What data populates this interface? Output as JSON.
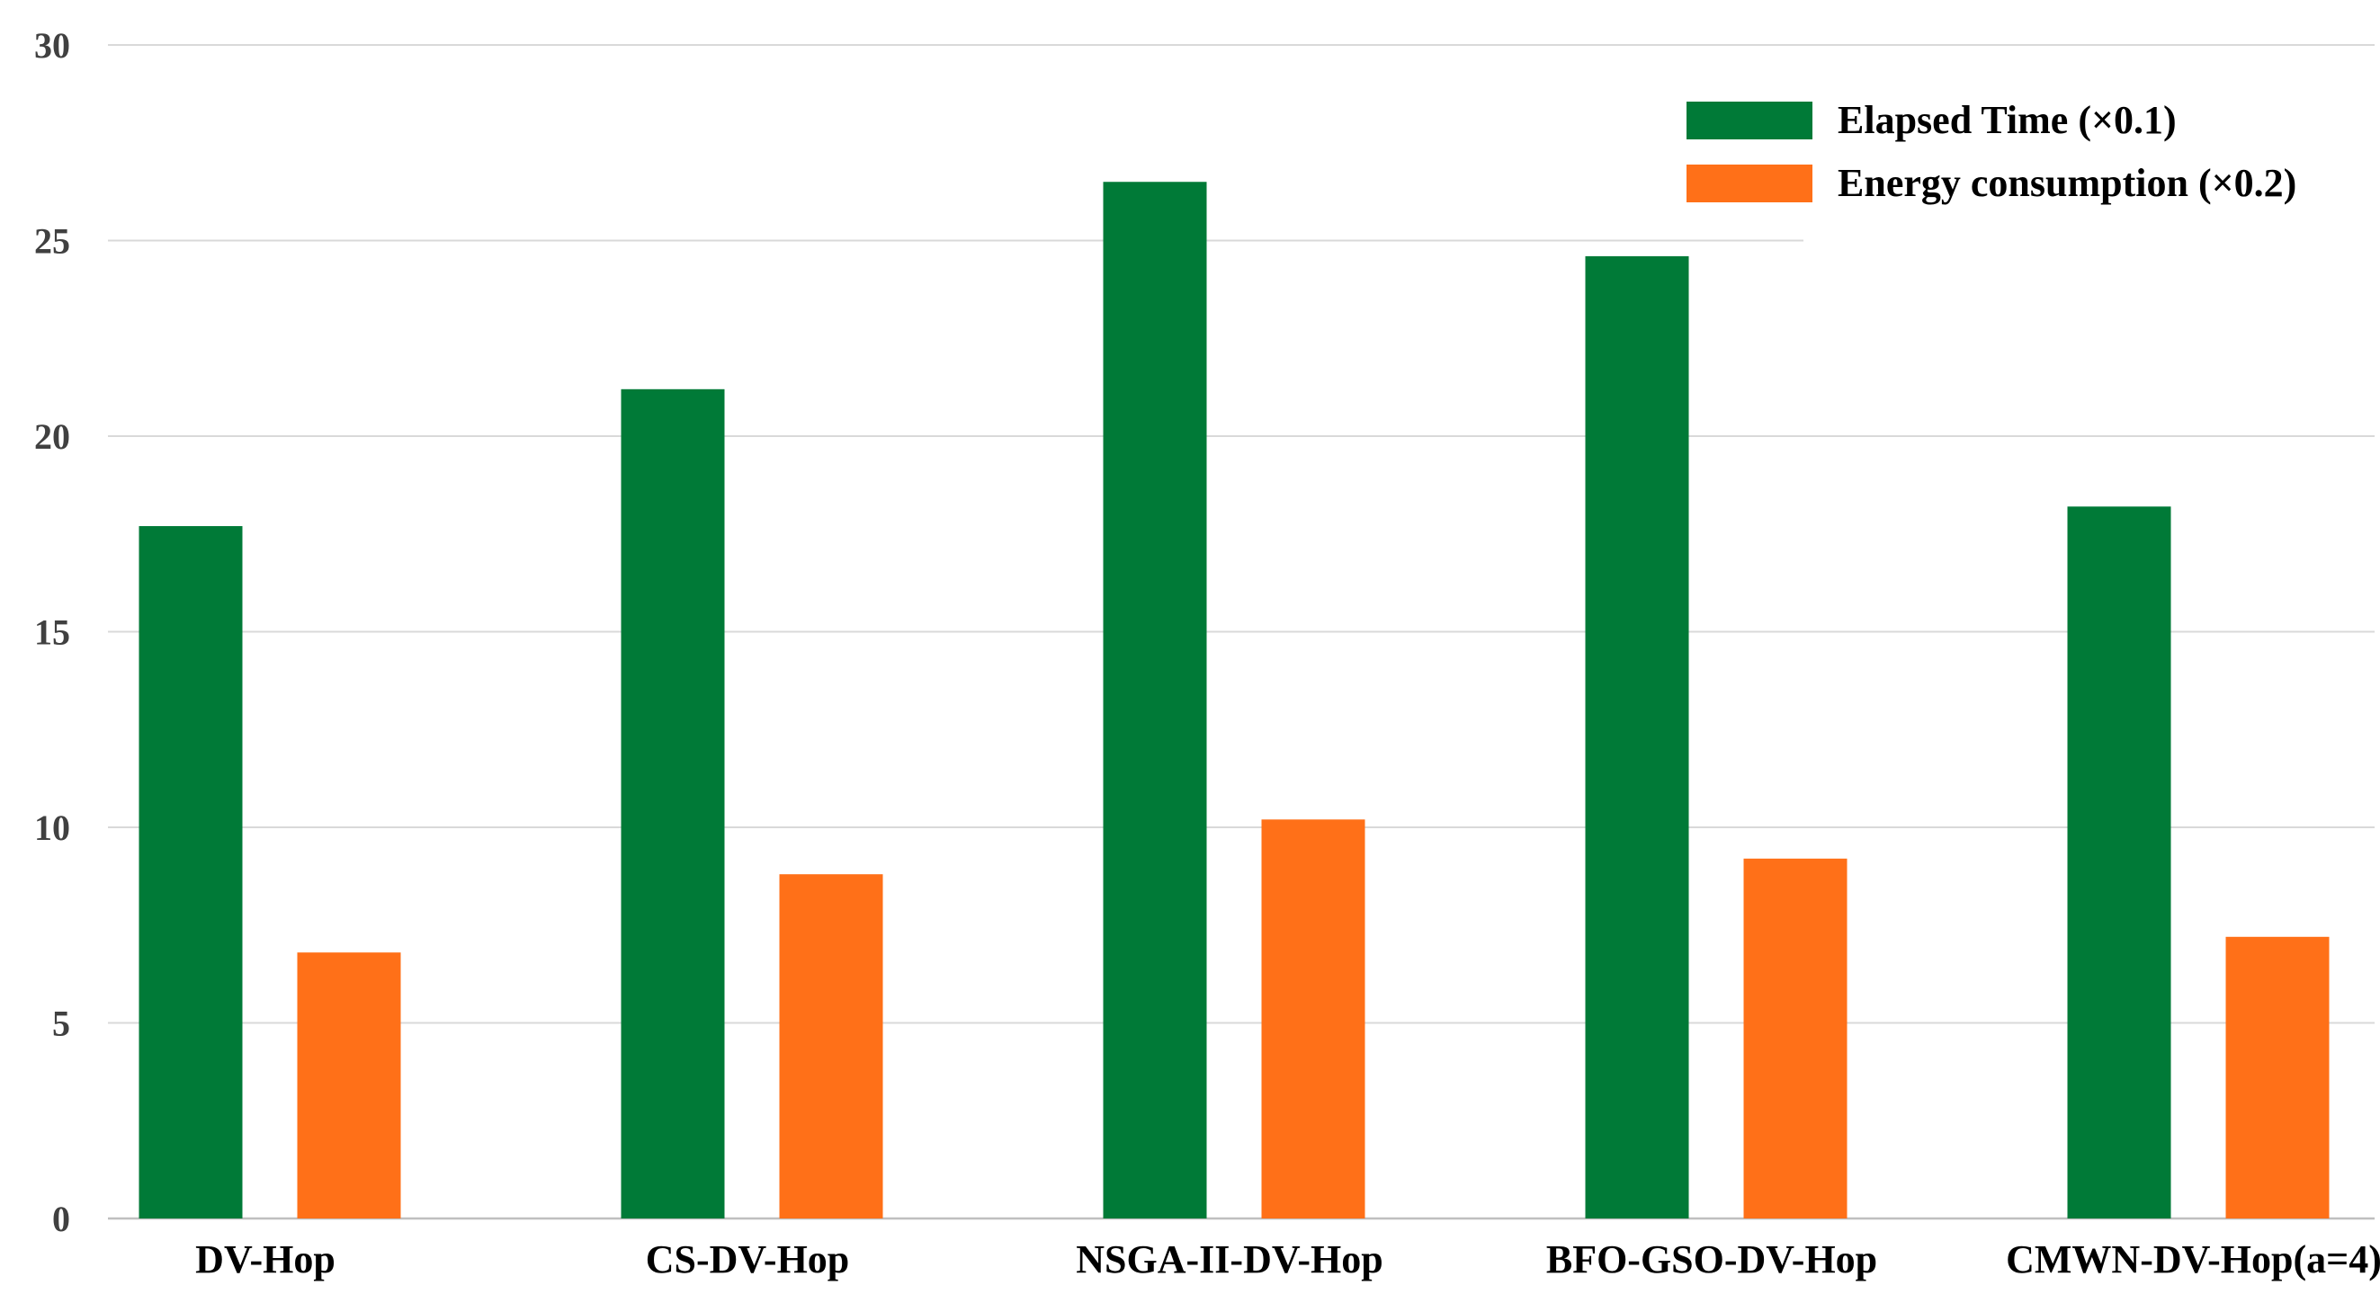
{
  "chart_data": {
    "type": "bar",
    "title": "",
    "xlabel": "",
    "ylabel": "",
    "ylim": [
      0,
      30
    ],
    "yticks": [
      0,
      5,
      10,
      15,
      20,
      25,
      30
    ],
    "grid": true,
    "legend_position": "top-right",
    "categories": [
      "DV-Hop",
      "CS-DV-Hop",
      "NSGA-II-DV-Hop",
      "BFO-GSO-DV-Hop",
      "CMWN-DV-Hop(a=4)"
    ],
    "series": [
      {
        "name": "Elapsed Time (×0.1)",
        "color": "#007a37",
        "values": [
          17.7,
          21.2,
          26.5,
          24.6,
          18.2
        ]
      },
      {
        "name": "Energy consumption (×0.2)",
        "color": "#ff7018",
        "values": [
          6.8,
          8.8,
          10.2,
          9.2,
          7.2
        ]
      }
    ]
  }
}
